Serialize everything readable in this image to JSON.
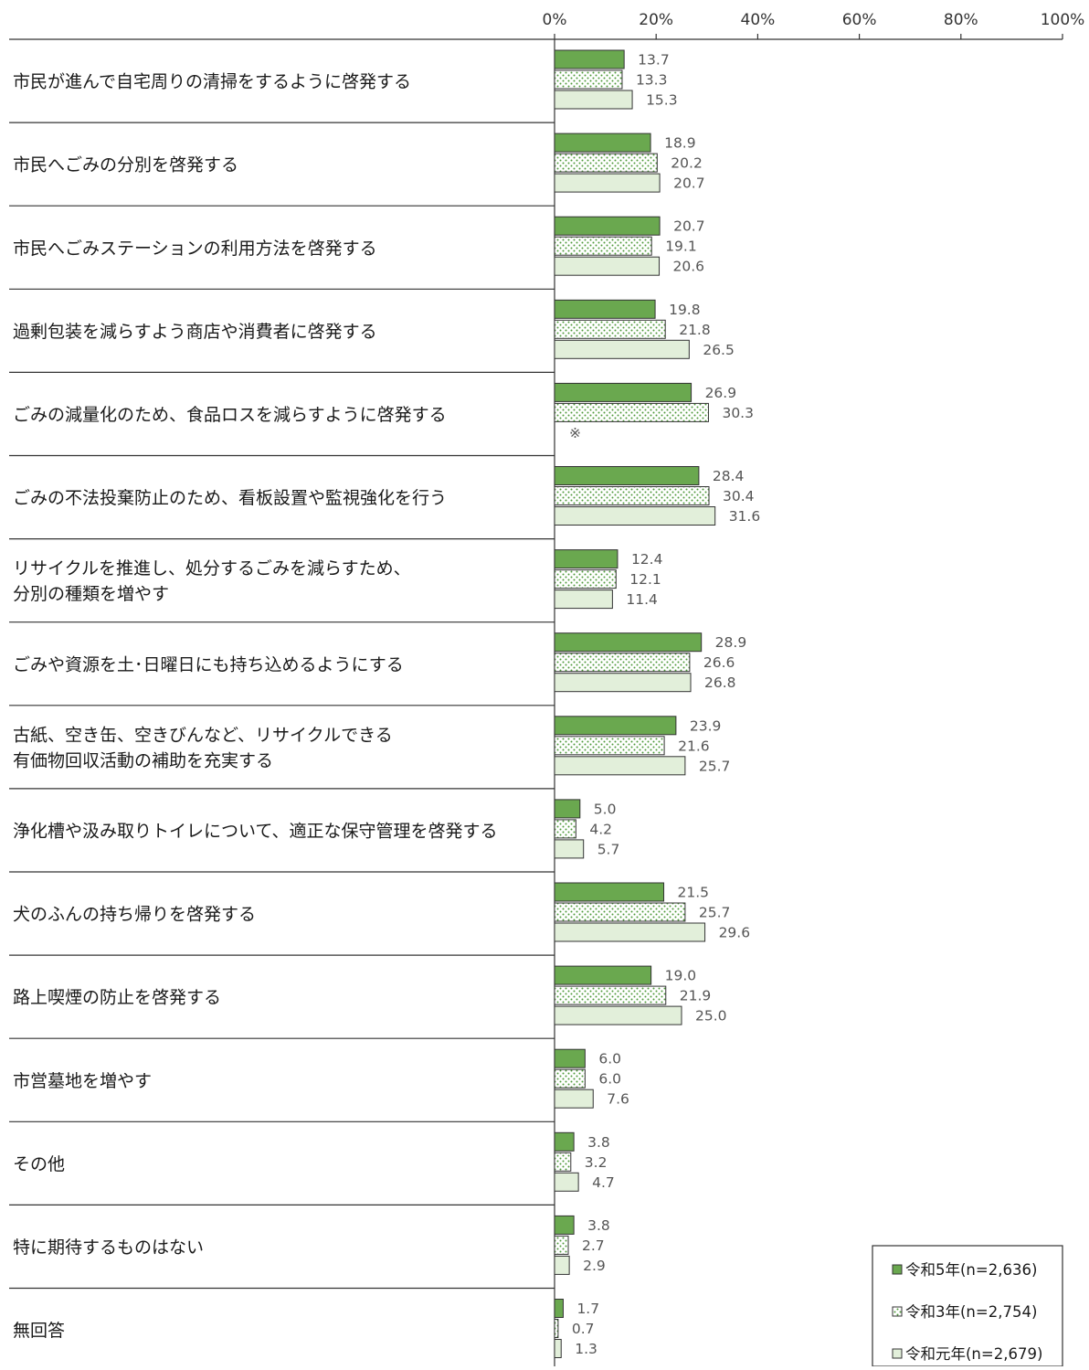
{
  "chart_data": {
    "type": "bar",
    "orientation": "horizontal",
    "xlim": [
      0,
      100
    ],
    "x_ticks": [
      "0%",
      "20%",
      "40%",
      "60%",
      "80%",
      "100%"
    ],
    "categories": [
      [
        "市民が進んで自宅周りの清掃をするように啓発する"
      ],
      [
        "市民へごみの分別を啓発する"
      ],
      [
        "市民へごみステーションの利用方法を啓発する"
      ],
      [
        "過剰包装を減らすよう商店や消費者に啓発する"
      ],
      [
        "ごみの減量化のため、食品ロスを減らすように啓発する"
      ],
      [
        "ごみの不法投棄防止のため、看板設置や監視強化を行う"
      ],
      [
        "リサイクルを推進し、処分するごみを減らすため、",
        "分別の種類を増やす"
      ],
      [
        "ごみや資源を土･日曜日にも持ち込めるようにする"
      ],
      [
        "古紙、空き缶、空きびんなど、リサイクルできる",
        "有価物回収活動の補助を充実する"
      ],
      [
        "浄化槽や汲み取りトイレについて、適正な保守管理を啓発する"
      ],
      [
        "犬のふんの持ち帰りを啓発する"
      ],
      [
        "路上喫煙の防止を啓発する"
      ],
      [
        "市営墓地を増やす"
      ],
      [
        "その他"
      ],
      [
        "特に期待するものはない"
      ],
      [
        "無回答"
      ]
    ],
    "series": [
      {
        "name": "令和5年(n=2,636)",
        "color": "#6aa84f",
        "pattern": "solid",
        "values": [
          13.7,
          18.9,
          20.7,
          19.8,
          26.9,
          28.4,
          12.4,
          28.9,
          23.9,
          5.0,
          21.5,
          19.0,
          6.0,
          3.8,
          3.8,
          1.7
        ],
        "labels": [
          "13.7",
          "18.9",
          "20.7",
          "19.8",
          "26.9",
          "28.4",
          "12.4",
          "28.9",
          "23.9",
          "5.0",
          "21.5",
          "19.0",
          "6.0",
          "3.8",
          "3.8",
          "1.7"
        ]
      },
      {
        "name": "令和3年(n=2,754)",
        "color": "#6aa84f",
        "pattern": "dots",
        "values": [
          13.3,
          20.2,
          19.1,
          21.8,
          30.3,
          30.4,
          12.1,
          26.6,
          21.6,
          4.2,
          25.7,
          21.9,
          6.0,
          3.2,
          2.7,
          0.7
        ],
        "labels": [
          "13.3",
          "20.2",
          "19.1",
          "21.8",
          "30.3",
          "30.4",
          "12.1",
          "26.6",
          "21.6",
          "4.2",
          "25.7",
          "21.9",
          "6.0",
          "3.2",
          "2.7",
          "0.7"
        ]
      },
      {
        "name": "令和元年(n=2,679)",
        "color": "#e2efda",
        "pattern": "solid",
        "values": [
          15.3,
          20.7,
          20.6,
          26.5,
          null,
          31.6,
          11.4,
          26.8,
          25.7,
          5.7,
          29.6,
          25.0,
          7.6,
          4.7,
          2.9,
          1.3
        ],
        "labels": [
          "15.3",
          "20.7",
          "20.6",
          "26.5",
          "※",
          "31.6",
          "11.4",
          "26.8",
          "25.7",
          "5.7",
          "29.6",
          "25.0",
          "7.6",
          "4.7",
          "2.9",
          "1.3"
        ]
      }
    ],
    "legend_position": "bottom-right",
    "grid": false
  }
}
